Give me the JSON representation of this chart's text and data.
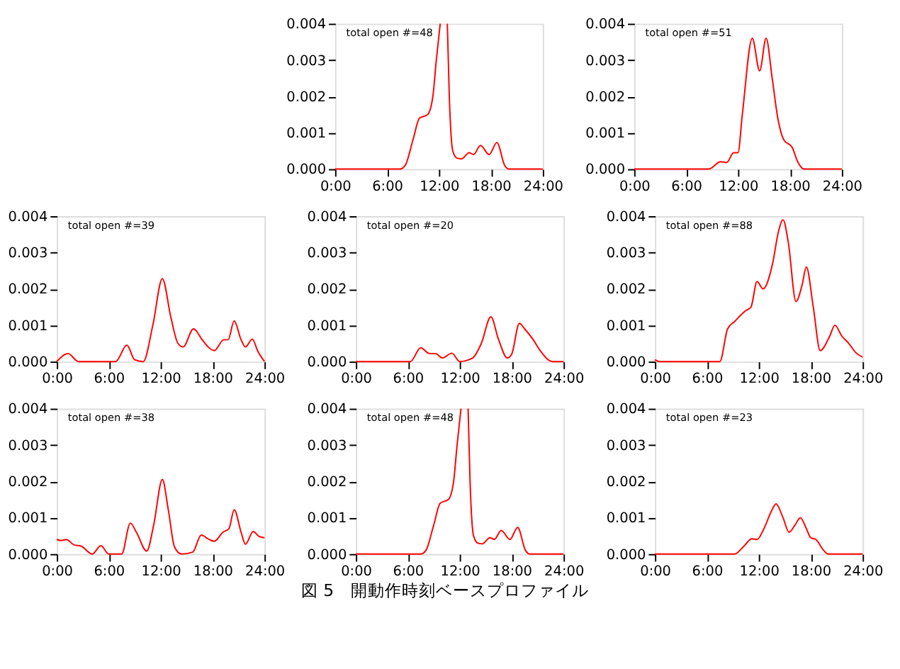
{
  "chart_data": [
    {
      "type": "line",
      "annotations": [
        "total open #=48"
      ],
      "xlim": [
        0,
        24
      ],
      "ylim": [
        0,
        0.004
      ],
      "xticks": [
        {
          "value": 0,
          "label": "0:00"
        },
        {
          "value": 6,
          "label": "6:00"
        },
        {
          "value": 12,
          "label": "12:00"
        },
        {
          "value": 18,
          "label": "18:00"
        },
        {
          "value": 24,
          "label": "24:00"
        }
      ],
      "yticks": [
        {
          "value": 0,
          "label": "0.000"
        },
        {
          "value": 0.001,
          "label": "0.001"
        },
        {
          "value": 0.002,
          "label": "0.002"
        },
        {
          "value": 0.003,
          "label": "0.003"
        },
        {
          "value": 0.004,
          "label": "0.004"
        }
      ],
      "series": [
        {
          "color": "#ff0000",
          "x": [
            0,
            7.5,
            8.1,
            9,
            9.75,
            10.7,
            11.3,
            11.7,
            12.15,
            12.5,
            12.97,
            13.2,
            13.6,
            14.1,
            14.6,
            15.5,
            16,
            16.8,
            17.8,
            18.7,
            19.6,
            20.1,
            24
          ],
          "values": [
            0,
            0,
            0.0001,
            0.0008,
            0.0014,
            0.0015,
            0.002,
            0.003,
            0.004,
            null,
            0.004,
            0.002,
            0.0005,
            0.0003,
            0.00028,
            0.00045,
            0.0004,
            0.00065,
            0.0004,
            0.00073,
            0.0001,
            0,
            0
          ]
        }
      ]
    },
    {
      "type": "line",
      "annotations": [
        "total open #=51"
      ],
      "xlim": [
        0,
        24
      ],
      "ylim": [
        0,
        0.004
      ],
      "xticks": [
        {
          "value": 0,
          "label": "0:00"
        },
        {
          "value": 6,
          "label": "6:00"
        },
        {
          "value": 12,
          "label": "12:00"
        },
        {
          "value": 18,
          "label": "18:00"
        },
        {
          "value": 24,
          "label": "24:00"
        }
      ],
      "yticks": [
        {
          "value": 0,
          "label": "0.000"
        },
        {
          "value": 0.001,
          "label": "0.001"
        },
        {
          "value": 0.002,
          "label": "0.002"
        },
        {
          "value": 0.003,
          "label": "0.003"
        },
        {
          "value": 0.004,
          "label": "0.004"
        }
      ],
      "series": [
        {
          "color": "#ff0000",
          "x": [
            0,
            8.6,
            10,
            10.7,
            11.5,
            12,
            12.5,
            13.65,
            14.5,
            15.25,
            15.95,
            16.6,
            17.3,
            18.25,
            18.9,
            19.6,
            24
          ],
          "values": [
            0,
            0,
            0.0002,
            0.00018,
            0.00045,
            0.00045,
            0.0015,
            0.0036,
            0.0027,
            0.0036,
            0.0025,
            0.0014,
            0.0008,
            0.0006,
            0.0002,
            0,
            0
          ]
        }
      ]
    },
    {
      "type": "line",
      "annotations": [
        "total open #=39"
      ],
      "xlim": [
        0,
        24
      ],
      "ylim": [
        0,
        0.004
      ],
      "xticks": [
        {
          "value": 0,
          "label": "0:00"
        },
        {
          "value": 6,
          "label": "6:00"
        },
        {
          "value": 12,
          "label": "12:00"
        },
        {
          "value": 18,
          "label": "18:00"
        },
        {
          "value": 24,
          "label": "24:00"
        }
      ],
      "yticks": [
        {
          "value": 0,
          "label": "0.000"
        },
        {
          "value": 0.001,
          "label": "0.001"
        },
        {
          "value": 0.002,
          "label": "0.002"
        },
        {
          "value": 0.003,
          "label": "0.003"
        },
        {
          "value": 0.004,
          "label": "0.004"
        }
      ],
      "series": [
        {
          "color": "#ff0000",
          "x": [
            0,
            1.3,
            2.5,
            6.8,
            8.1,
            9,
            10,
            11.1,
            12.2,
            13.2,
            14,
            14.6,
            15.8,
            16.8,
            17.5,
            18.2,
            19.3,
            19.8,
            20.5,
            21.3,
            21.8,
            22.6,
            23.2,
            24
          ],
          "values": [
            0,
            0.00022,
            0,
            0,
            0.00045,
            5e-05,
            0,
            0.001,
            0.00228,
            0.0012,
            0.0005,
            0.0004,
            0.0009,
            0.0006,
            0.0004,
            0.0003,
            0.0006,
            0.0006,
            0.00112,
            0.0006,
            0.0004,
            0.00062,
            0.0003,
            0
          ]
        }
      ]
    },
    {
      "type": "line",
      "annotations": [
        "total open #=20"
      ],
      "xlim": [
        0,
        24
      ],
      "ylim": [
        0,
        0.004
      ],
      "xticks": [
        {
          "value": 0,
          "label": "0:00"
        },
        {
          "value": 6,
          "label": "6:00"
        },
        {
          "value": 12,
          "label": "12:00"
        },
        {
          "value": 18,
          "label": "18:00"
        },
        {
          "value": 24,
          "label": "24:00"
        }
      ],
      "yticks": [
        {
          "value": 0,
          "label": "0.000"
        },
        {
          "value": 0.001,
          "label": "0.001"
        },
        {
          "value": 0.002,
          "label": "0.002"
        },
        {
          "value": 0.003,
          "label": "0.003"
        },
        {
          "value": 0.004,
          "label": "0.004"
        }
      ],
      "series": [
        {
          "color": "#ff0000",
          "x": [
            0,
            6.3,
            7.5,
            8.5,
            9.2,
            10,
            11.1,
            12,
            13.5,
            14.5,
            15.6,
            16.5,
            17.5,
            18,
            18.9,
            19.5,
            20.5,
            21.3,
            22.7,
            24
          ],
          "values": [
            0,
            0,
            0.00038,
            0.00022,
            0.00022,
            0.0001,
            0.00023,
            0,
            0.0001,
            0.0005,
            0.00123,
            0.0006,
            0.0001,
            0.0002,
            0.00105,
            0.0009,
            0.0006,
            0.0003,
            0,
            0
          ]
        }
      ]
    },
    {
      "type": "line",
      "annotations": [
        "total open #=88"
      ],
      "xlim": [
        0,
        24
      ],
      "ylim": [
        0,
        0.004
      ],
      "xticks": [
        {
          "value": 0,
          "label": "0:00"
        },
        {
          "value": 6,
          "label": "6:00"
        },
        {
          "value": 12,
          "label": "12:00"
        },
        {
          "value": 18,
          "label": "18:00"
        },
        {
          "value": 24,
          "label": "24:00"
        }
      ],
      "yticks": [
        {
          "value": 0,
          "label": "0.000"
        },
        {
          "value": 0.001,
          "label": "0.001"
        },
        {
          "value": 0.002,
          "label": "0.002"
        },
        {
          "value": 0.003,
          "label": "0.003"
        },
        {
          "value": 0.004,
          "label": "0.004"
        }
      ],
      "series": [
        {
          "color": "#ff0000",
          "x": [
            0,
            0.5,
            7.5,
            8.4,
            9.2,
            10.5,
            11.1,
            11.8,
            12.5,
            13.6,
            14.3,
            14.8,
            15.4,
            16.3,
            17,
            17.5,
            18.3,
            19.1,
            20.2,
            20.8,
            21.6,
            22.4,
            23.2,
            24
          ],
          "values": [
            5e-05,
            0,
            0,
            0.0009,
            0.0011,
            0.0014,
            0.0015,
            0.0022,
            0.002,
            0.0027,
            0.0036,
            0.0039,
            0.0033,
            0.00165,
            0.0021,
            0.0026,
            0.0015,
            0.0003,
            0.0007,
            0.001,
            0.0007,
            0.0005,
            0.00025,
            0.00012
          ]
        }
      ]
    },
    {
      "type": "line",
      "annotations": [
        "total open #=38"
      ],
      "xlim": [
        0,
        24
      ],
      "ylim": [
        0,
        0.004
      ],
      "xticks": [
        {
          "value": 0,
          "label": "0:00"
        },
        {
          "value": 6,
          "label": "6:00"
        },
        {
          "value": 12,
          "label": "12:00"
        },
        {
          "value": 18,
          "label": "18:00"
        },
        {
          "value": 24,
          "label": "24:00"
        }
      ],
      "yticks": [
        {
          "value": 0,
          "label": "0.000"
        },
        {
          "value": 0.001,
          "label": "0.001"
        },
        {
          "value": 0.002,
          "label": "0.002"
        },
        {
          "value": 0.003,
          "label": "0.003"
        },
        {
          "value": 0.004,
          "label": "0.004"
        }
      ],
      "series": [
        {
          "color": "#ff0000",
          "x": [
            0,
            0.5,
            1.1,
            2,
            2.8,
            4.1,
            5.1,
            6,
            7.5,
            8.5,
            9.2,
            10.4,
            11.2,
            12.2,
            12.9,
            13.6,
            14.4,
            15.7,
            16.7,
            17.6,
            18.2,
            19.2,
            19.9,
            20.5,
            21.3,
            21.8,
            22.7,
            23.4,
            24
          ],
          "values": [
            0.0004,
            0.00037,
            0.0004,
            0.00025,
            0.00022,
            0,
            0.00023,
            0,
            0,
            0.00085,
            0.0006,
            8e-05,
            0.0008,
            0.00205,
            0.0012,
            0.0002,
            0,
            5e-05,
            0.00052,
            0.0004,
            0.00035,
            0.0006,
            0.0007,
            0.00122,
            0.0006,
            0.00027,
            0.00062,
            0.00048,
            0.00045
          ]
        }
      ]
    },
    {
      "type": "line",
      "annotations": [
        "total open #=48"
      ],
      "xlim": [
        0,
        24
      ],
      "ylim": [
        0,
        0.004
      ],
      "xticks": [
        {
          "value": 0,
          "label": "0:00"
        },
        {
          "value": 6,
          "label": "6:00"
        },
        {
          "value": 12,
          "label": "12:00"
        },
        {
          "value": 18,
          "label": "18:00"
        },
        {
          "value": 24,
          "label": "24:00"
        }
      ],
      "yticks": [
        {
          "value": 0,
          "label": "0.000"
        },
        {
          "value": 0.001,
          "label": "0.001"
        },
        {
          "value": 0.002,
          "label": "0.002"
        },
        {
          "value": 0.003,
          "label": "0.003"
        },
        {
          "value": 0.004,
          "label": "0.004"
        }
      ],
      "series": [
        {
          "color": "#ff0000",
          "x": [
            0,
            7.5,
            8.1,
            9,
            9.75,
            10.7,
            11.3,
            11.7,
            12.15,
            12.5,
            12.97,
            13.2,
            13.6,
            14.1,
            14.6,
            15.5,
            16,
            16.8,
            17.8,
            18.7,
            19.6,
            20.1,
            24
          ],
          "values": [
            0,
            0,
            0.0001,
            0.0008,
            0.0014,
            0.0015,
            0.002,
            0.003,
            0.004,
            null,
            0.004,
            0.002,
            0.0005,
            0.0003,
            0.00028,
            0.00045,
            0.0004,
            0.00065,
            0.0004,
            0.00073,
            0.0001,
            0,
            0
          ]
        }
      ]
    },
    {
      "type": "line",
      "annotations": [
        "total open #=23",
        "図 5　開動作時刻ベースプロファイル"
      ],
      "xlim": [
        0,
        24
      ],
      "ylim": [
        0,
        0.004
      ],
      "xticks": [
        {
          "value": 0,
          "label": "0:00"
        },
        {
          "value": 6,
          "label": "6:00"
        },
        {
          "value": 12,
          "label": "12:00"
        },
        {
          "value": 18,
          "label": "18:00"
        },
        {
          "value": 24,
          "label": "24:00"
        }
      ],
      "yticks": [
        {
          "value": 0,
          "label": "0.000"
        },
        {
          "value": 0.001,
          "label": "0.001"
        },
        {
          "value": 0.002,
          "label": "0.002"
        },
        {
          "value": 0.003,
          "label": "0.003"
        },
        {
          "value": 0.004,
          "label": "0.004"
        }
      ],
      "series": [
        {
          "color": "#ff0000",
          "x": [
            0,
            9.2,
            10.3,
            11.2,
            11.8,
            12.6,
            13.5,
            14,
            14.8,
            15.5,
            16.2,
            16.8,
            17.5,
            18,
            18.6,
            19.5,
            20,
            24
          ],
          "values": [
            0,
            0,
            0.00022,
            0.00042,
            0.0004,
            0.0007,
            0.0012,
            0.00138,
            0.001,
            0.0006,
            0.0008,
            0.001,
            0.0007,
            0.00045,
            0.0004,
            0.0001,
            0,
            0
          ]
        }
      ]
    }
  ]
}
